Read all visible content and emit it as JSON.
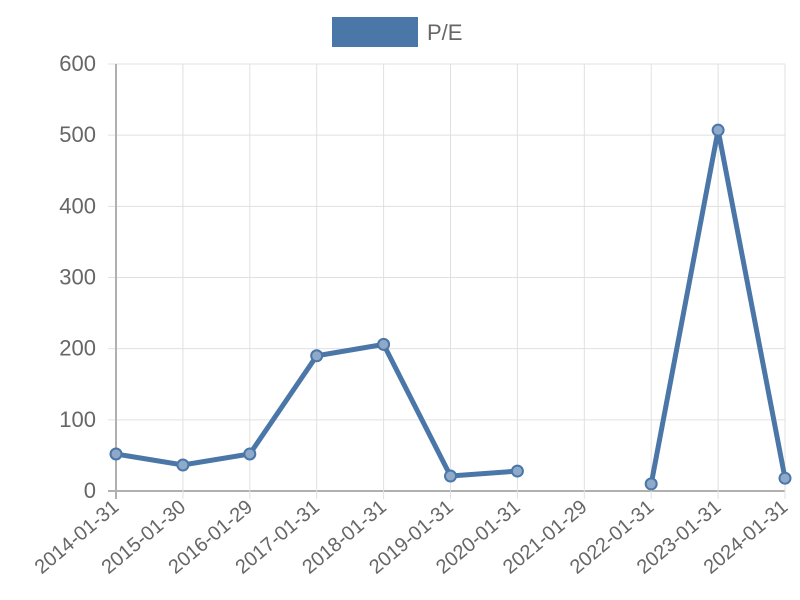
{
  "chart_data": {
    "type": "line",
    "title": "",
    "xlabel": "",
    "ylabel": "",
    "categories": [
      "2014-01-31",
      "2015-01-30",
      "2016-01-29",
      "2017-01-31",
      "2018-01-31",
      "2019-01-31",
      "2020-01-31",
      "2021-01-29",
      "2022-01-31",
      "2023-01-31",
      "2024-01-31"
    ],
    "series": [
      {
        "name": "P/E",
        "values": [
          52,
          36.5,
          52,
          190,
          206,
          21,
          28,
          null,
          10,
          507,
          18
        ]
      }
    ],
    "ylim": [
      0,
      600
    ],
    "yticks": [
      0,
      100,
      200,
      300,
      400,
      500,
      600
    ],
    "grid": true,
    "legend": "top",
    "color": "#4a76a8"
  }
}
